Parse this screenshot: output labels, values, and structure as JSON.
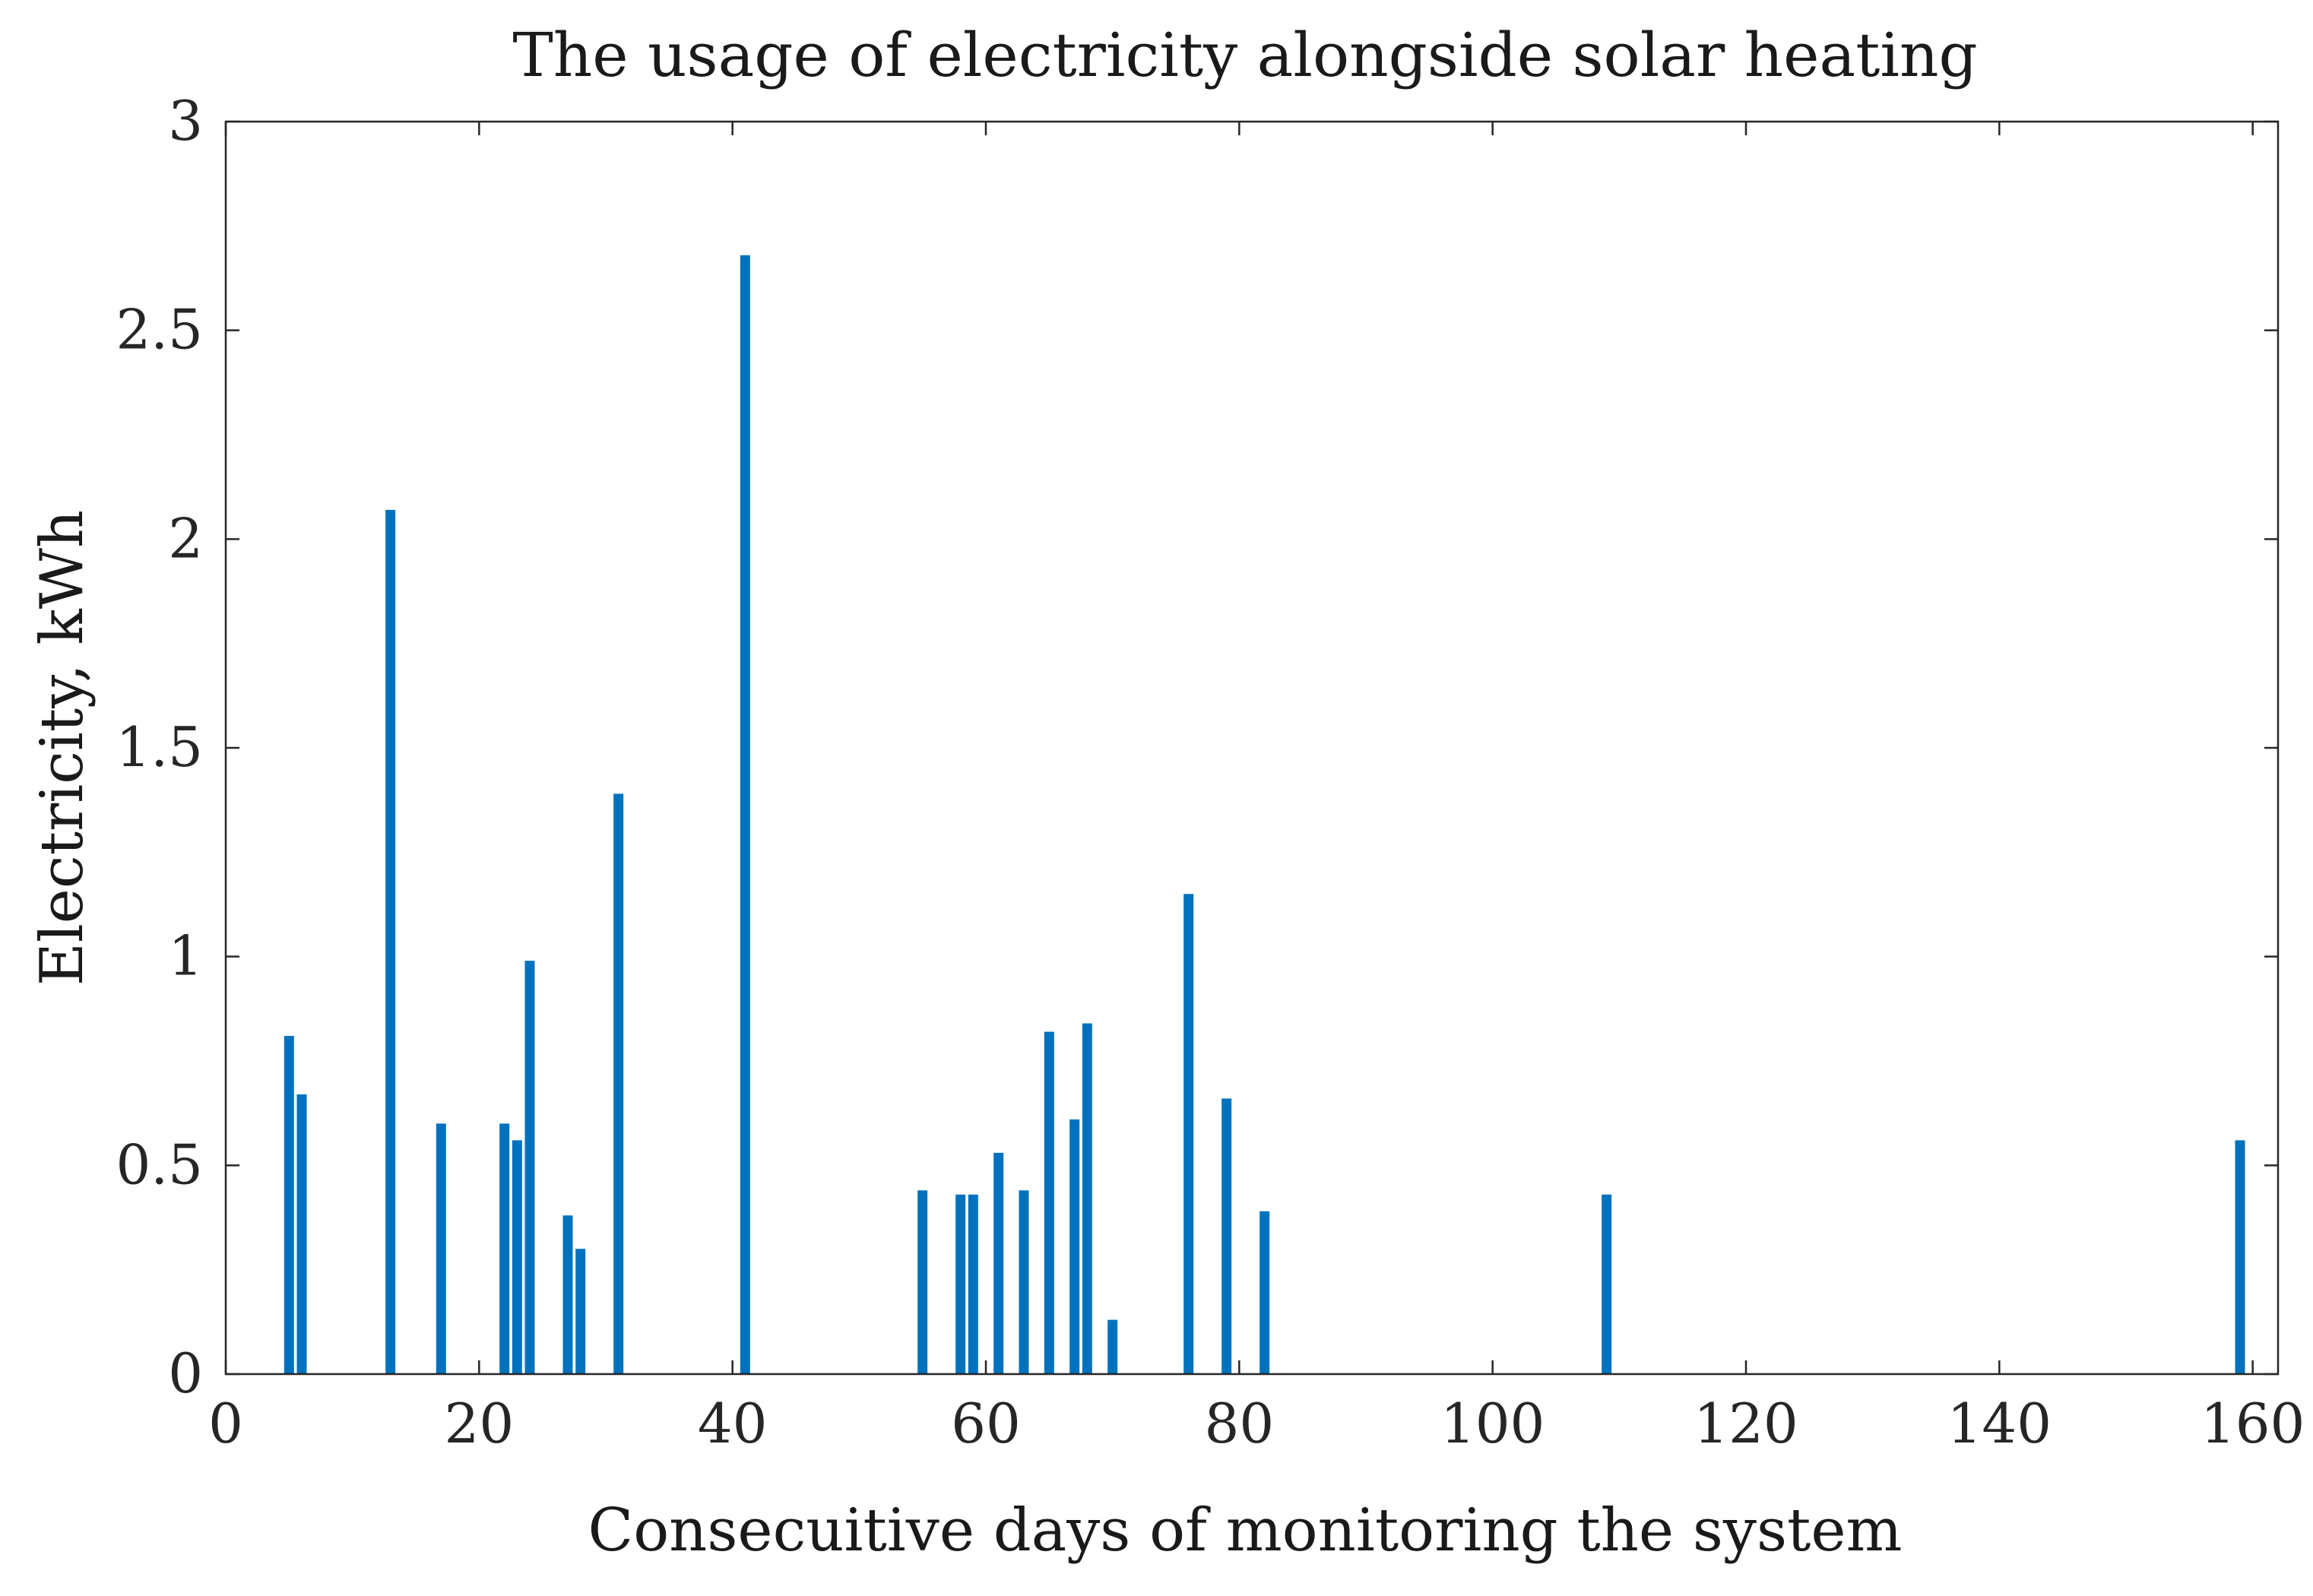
{
  "chart_data": {
    "type": "bar",
    "title": "The usage of electricity alongside solar heating",
    "xlabel": "Consecuitive days of monitoring the system",
    "ylabel": "Electricity, kWh",
    "xlim": [
      0,
      162
    ],
    "ylim": [
      0,
      3
    ],
    "xticks": [
      0,
      20,
      40,
      60,
      80,
      100,
      120,
      140,
      160
    ],
    "yticks": [
      0,
      0.5,
      1,
      1.5,
      2,
      2.5,
      3
    ],
    "xtick_labels": [
      "0",
      "20",
      "40",
      "60",
      "80",
      "100",
      "120",
      "140",
      "160"
    ],
    "ytick_labels": [
      "0",
      "0.5",
      "1",
      "1.5",
      "2",
      "2.5",
      "3"
    ],
    "bar_color": "#0072BD",
    "grid": false,
    "x": [
      5,
      6,
      13,
      17,
      22,
      23,
      24,
      27,
      28,
      31,
      41,
      55,
      58,
      59,
      61,
      63,
      65,
      67,
      68,
      70,
      76,
      79,
      82,
      109,
      159
    ],
    "values": [
      0.81,
      0.67,
      2.07,
      0.6,
      0.6,
      0.56,
      0.99,
      0.38,
      0.3,
      1.39,
      2.68,
      0.44,
      0.43,
      0.43,
      0.53,
      0.44,
      0.82,
      0.61,
      0.84,
      0.13,
      1.15,
      0.66,
      0.39,
      0.43,
      0.56
    ]
  }
}
